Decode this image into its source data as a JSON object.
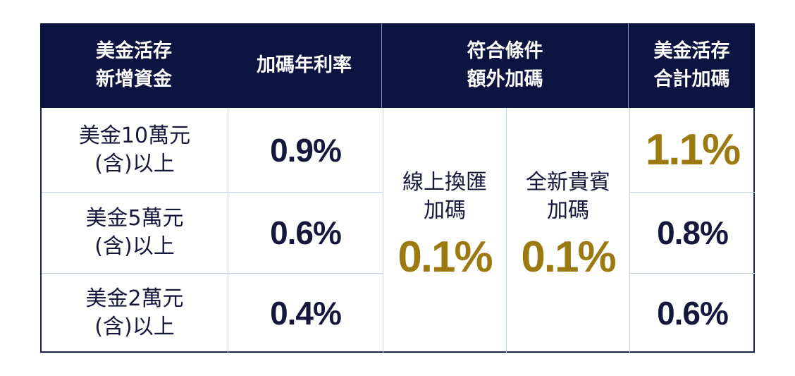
{
  "table": {
    "header": [
      [
        "美金活存",
        "新增資金"
      ],
      [
        "加碼年利率"
      ],
      [
        "符合條件",
        "額外加碼"
      ],
      [
        "美金活存",
        "合計加碼"
      ]
    ],
    "rows": [
      {
        "amount": [
          "美金10萬元",
          "(含)以上"
        ],
        "rate": "0.9%",
        "total": "1.1%"
      },
      {
        "amount": [
          "美金5萬元",
          "(含)以上"
        ],
        "rate": "0.6%",
        "total": "0.8%"
      },
      {
        "amount": [
          "美金2萬元",
          "(含)以上"
        ],
        "rate": "0.4%",
        "total": "0.6%"
      }
    ],
    "bonus": [
      {
        "label": [
          "線上換匯",
          "加碼"
        ],
        "rate": "0.1%"
      },
      {
        "label": [
          "全新貴賓",
          "加碼"
        ],
        "rate": "0.1%"
      }
    ]
  }
}
